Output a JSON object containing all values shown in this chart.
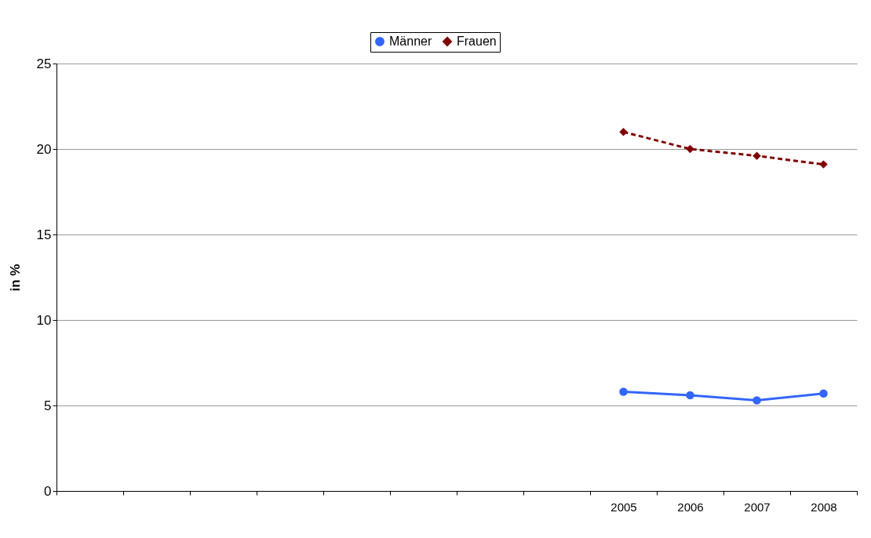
{
  "chart_data": {
    "type": "line",
    "ylabel": "in %",
    "categories": [
      null,
      null,
      null,
      null,
      null,
      null,
      null,
      null,
      "2005",
      "2006",
      "2007",
      "2008"
    ],
    "series": [
      {
        "name": "Männer",
        "color": "#3366ff",
        "marker": "circle",
        "line_style": "solid",
        "values": [
          null,
          null,
          null,
          null,
          null,
          null,
          null,
          null,
          5.8,
          5.6,
          5.3,
          5.7
        ]
      },
      {
        "name": "Frauen",
        "color": "#800000",
        "marker": "diamond",
        "line_style": "dashed",
        "values": [
          null,
          null,
          null,
          null,
          null,
          null,
          null,
          null,
          21.0,
          20.0,
          19.6,
          19.1
        ]
      }
    ],
    "ylim": [
      0,
      25
    ],
    "yticks": [
      0,
      5,
      10,
      15,
      20,
      25
    ],
    "grid": "y",
    "legend": "top"
  }
}
